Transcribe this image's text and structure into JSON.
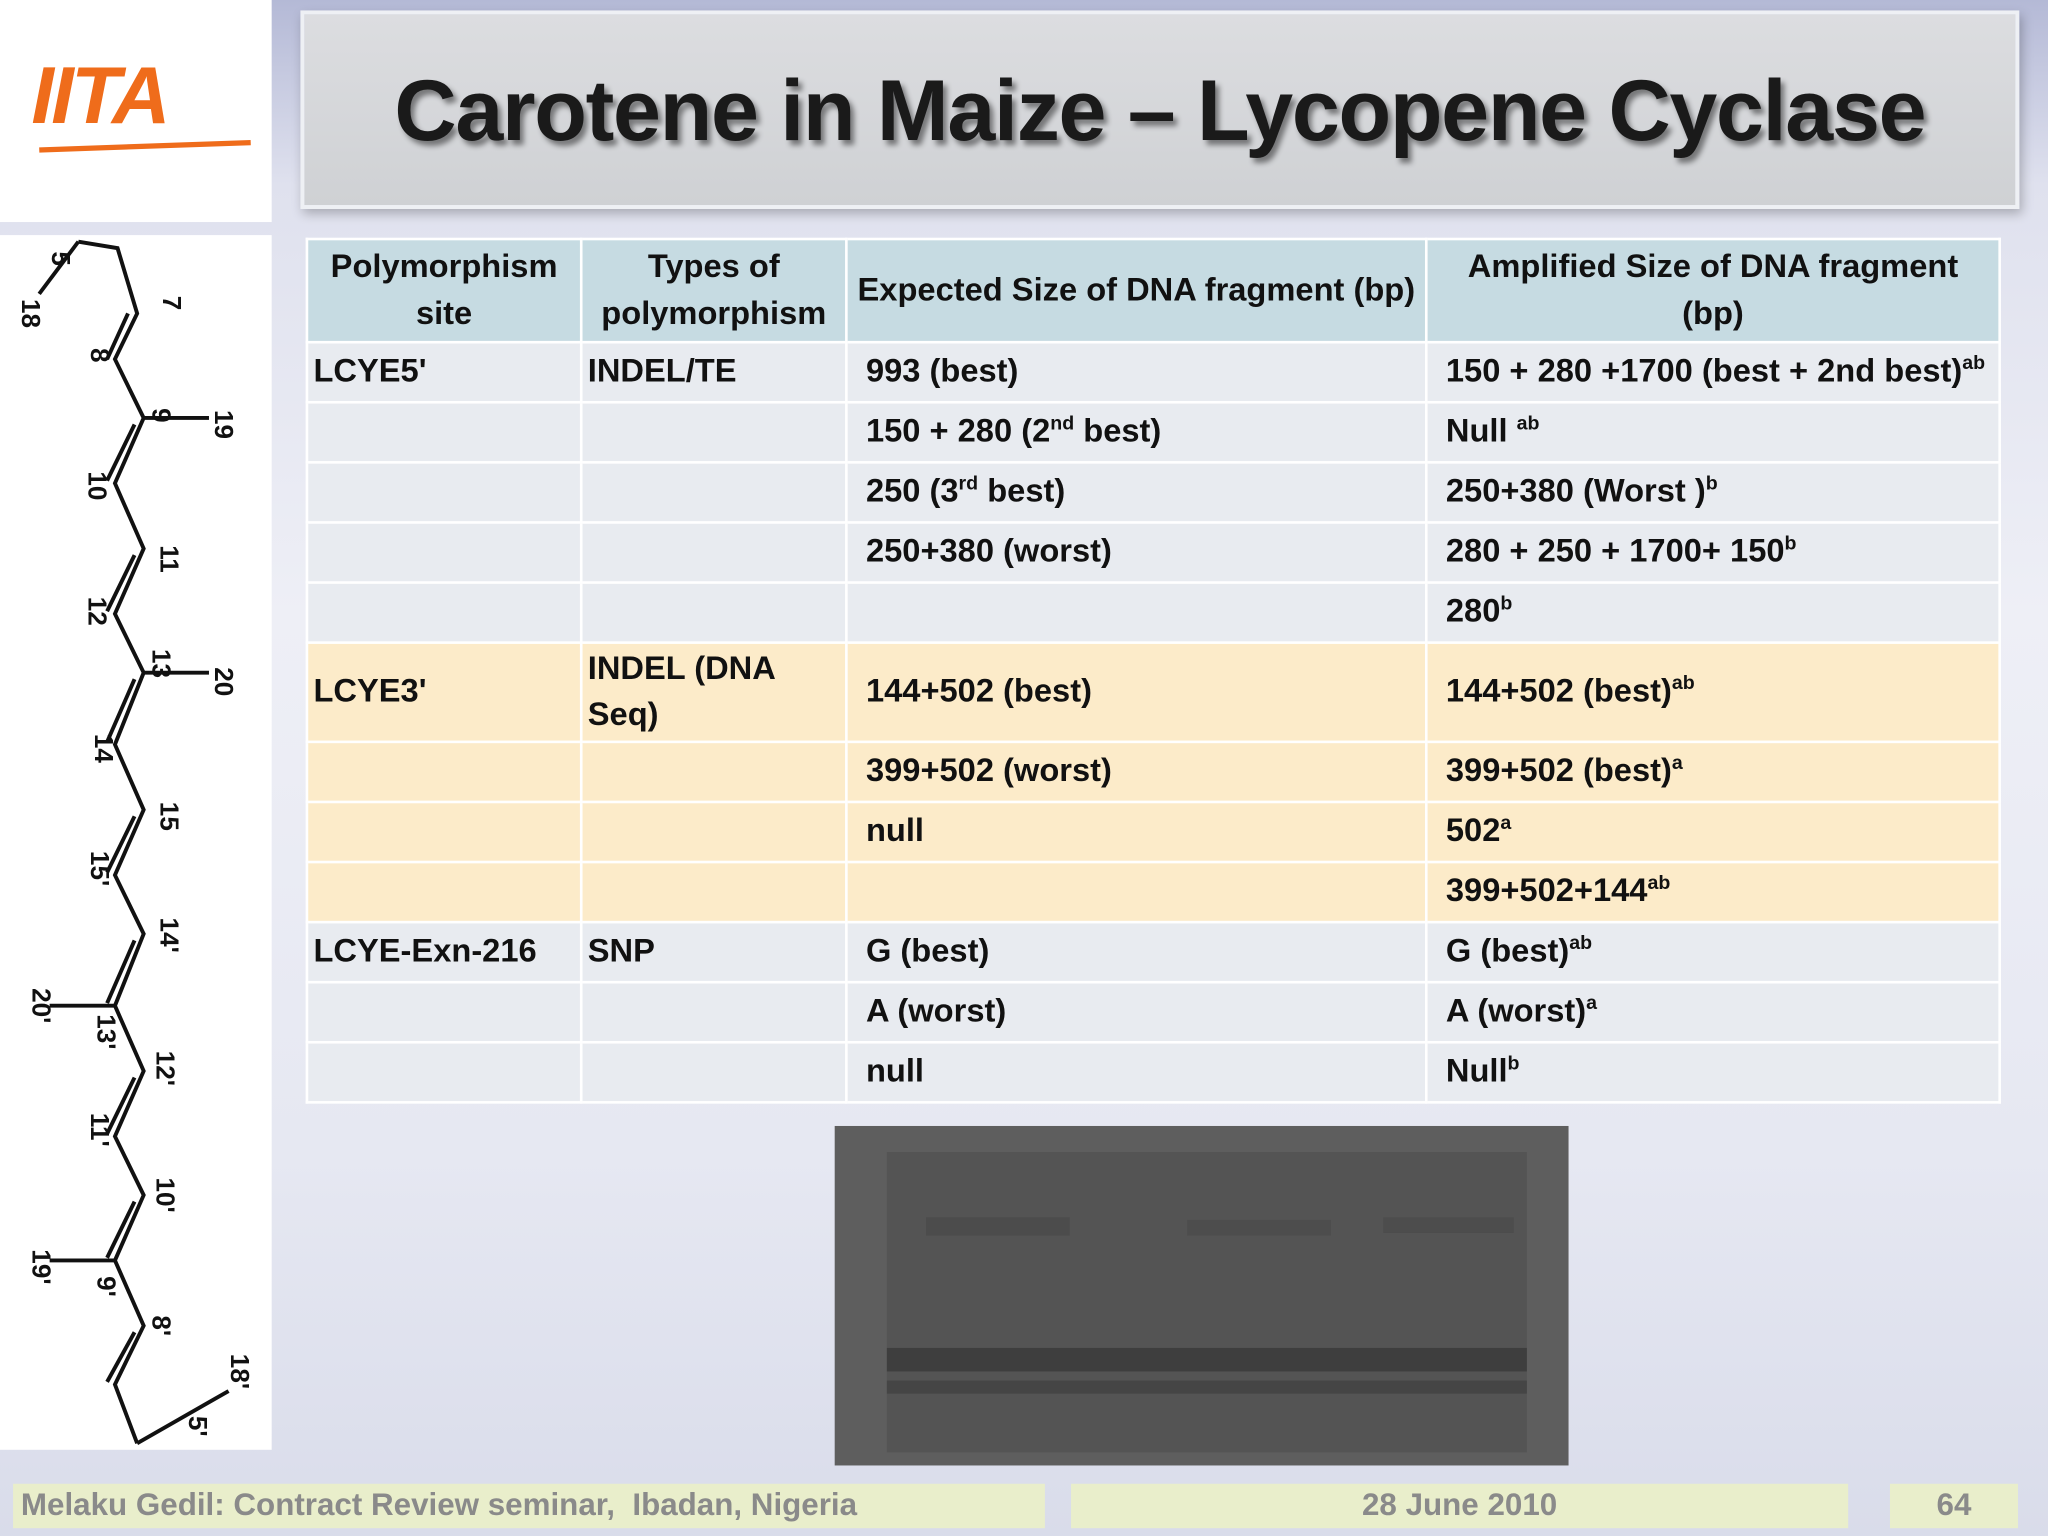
{
  "logo": "IITA",
  "header": {
    "title": "Carotene in Maize – Lycopene Cyclase"
  },
  "structure": {
    "labels": [
      "5",
      "18",
      "7",
      "8",
      "9",
      "19",
      "10",
      "11",
      "12",
      "13",
      "20",
      "14",
      "15",
      "15'",
      "14'",
      "20'",
      "13'",
      "12'",
      "11'",
      "10'",
      "19'",
      "9'",
      "8'",
      "18'",
      "5'"
    ]
  },
  "table": {
    "header": [
      "Polymorphism site",
      "Types of polymorphism",
      "Expected Size of DNA fragment (bp)",
      "Amplified Size of DNA fragment (bp)"
    ],
    "header_color": "#c6dbe2",
    "groups": [
      {
        "color": "#e8ebf0",
        "rows": [
          [
            "LCYE5'",
            "INDEL/TE",
            "993 (best)",
            [
              {
                "text": "150 + 280 +1700 (best + 2nd best)"
              },
              {
                "sup": "ab"
              }
            ]
          ],
          [
            null,
            null,
            [
              {
                "text": "150 + 280 (2"
              },
              {
                "sup": "nd"
              },
              {
                "text": " best)"
              }
            ],
            [
              {
                "text": "Null "
              },
              {
                "sup": "ab"
              }
            ]
          ],
          [
            null,
            null,
            [
              {
                "text": "250 (3"
              },
              {
                "sup": "rd"
              },
              {
                "text": " best)"
              }
            ],
            [
              {
                "text": "250+380 (Worst )"
              },
              {
                "sup": "b"
              }
            ]
          ],
          [
            null,
            null,
            "250+380 (worst)",
            [
              {
                "text": "280 + 250 + 1700+ 150"
              },
              {
                "sup": "b"
              }
            ]
          ],
          [
            null,
            null,
            null,
            [
              {
                "text": "280"
              },
              {
                "sup": "b"
              }
            ]
          ]
        ]
      },
      {
        "color": "#fcebc9",
        "rows": [
          [
            "LCYE3'",
            "INDEL (DNA Seq)",
            "144+502 (best)",
            [
              {
                "text": "144+502 (best)"
              },
              {
                "sup": "ab"
              }
            ]
          ],
          [
            null,
            null,
            "399+502 (worst)",
            [
              {
                "text": "399+502 (best)"
              },
              {
                "sup": "a"
              }
            ]
          ],
          [
            null,
            null,
            "null",
            [
              {
                "text": "502"
              },
              {
                "sup": "a"
              }
            ]
          ],
          [
            null,
            null,
            null,
            [
              {
                "text": "399+502+144"
              },
              {
                "sup": "ab"
              }
            ]
          ]
        ]
      },
      {
        "color": "#e8ebf0",
        "rows": [
          [
            "LCYE-Exn-216",
            "SNP",
            "G (best)",
            [
              {
                "text": "G (best)"
              },
              {
                "sup": "ab"
              }
            ]
          ],
          [
            null,
            null,
            "A (worst)",
            [
              {
                "text": "A (worst)"
              },
              {
                "sup": "a"
              }
            ]
          ],
          [
            null,
            null,
            "null",
            [
              {
                "text": "Null"
              },
              {
                "sup": "b"
              }
            ]
          ]
        ]
      }
    ]
  },
  "footer": {
    "presenter": "Melaku Gedil: Contract Review seminar,  Ibadan, Nigeria",
    "date": "28 June 2010",
    "page": "64"
  }
}
